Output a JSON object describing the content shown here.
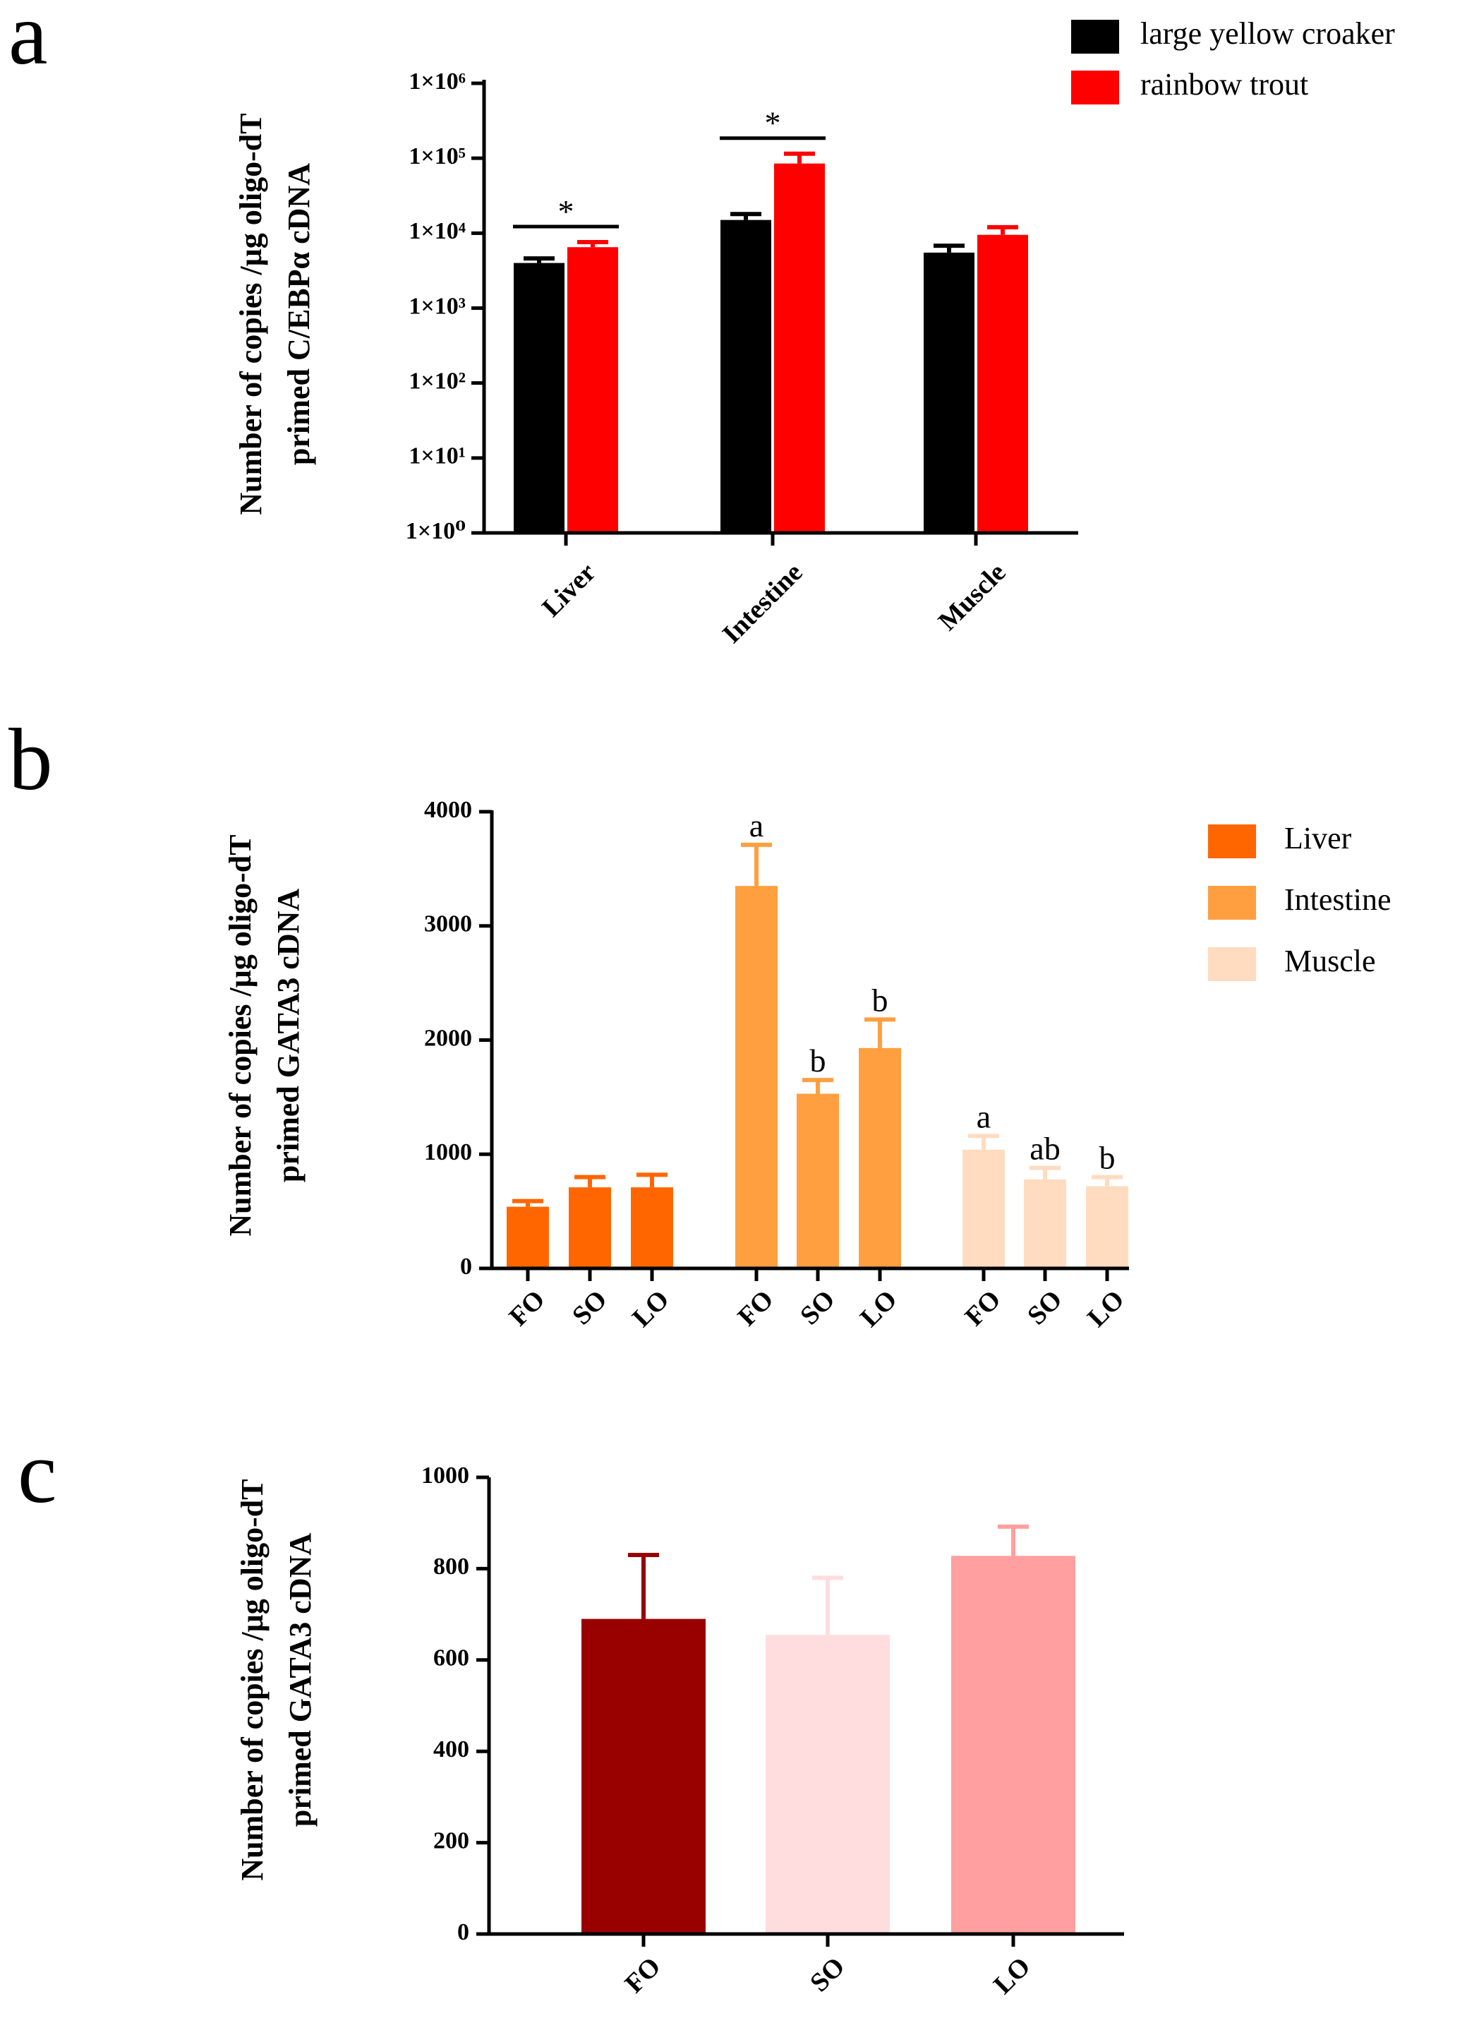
{
  "chart_data": [
    {
      "panel": "a",
      "type": "bar",
      "yscale": "log",
      "ylabel_lines": [
        "Number of copies /μg oligo-dT",
        "primed C/EBPα cDNA"
      ],
      "ytick_labels": [
        "1×10⁰",
        "1×10¹",
        "1×10²",
        "1×10³",
        "1×10⁴",
        "1×10⁵",
        "1×10⁶"
      ],
      "ylim": [
        1,
        1000000
      ],
      "categories": [
        "Liver",
        "Intestine",
        "Muscle"
      ],
      "series": [
        {
          "name": "large yellow croaker",
          "color": "#000000",
          "values": [
            4000,
            15000,
            5500
          ],
          "errors": [
            4600,
            18000,
            6800
          ]
        },
        {
          "name": "rainbow trout",
          "color": "#ff0000",
          "values": [
            6500,
            85000,
            9500
          ],
          "errors": [
            7600,
            115000,
            12000
          ]
        }
      ],
      "significance": [
        {
          "category": "Liver",
          "label": "*"
        },
        {
          "category": "Intestine",
          "label": "*"
        }
      ]
    },
    {
      "panel": "b",
      "type": "bar",
      "ylabel_lines": [
        "Number of copies /μg oligo-dT",
        "primed GATA3 cDNA"
      ],
      "ylim": [
        0,
        4000
      ],
      "yticks": [
        0,
        1000,
        2000,
        3000,
        4000
      ],
      "groups": [
        {
          "name": "Liver",
          "color": "#ff6600",
          "categories": [
            "FO",
            "SO",
            "LO"
          ],
          "values": [
            540,
            710,
            710
          ],
          "errors": [
            590,
            800,
            820
          ],
          "letters": [
            "",
            "",
            ""
          ]
        },
        {
          "name": "Intestine",
          "color": "#ff9f40",
          "categories": [
            "FO",
            "SO",
            "LO"
          ],
          "values": [
            3350,
            1530,
            1930
          ],
          "errors": [
            3710,
            1650,
            2180
          ],
          "letters": [
            "a",
            "b",
            "b"
          ]
        },
        {
          "name": "Muscle",
          "color": "#ffdcc0",
          "categories": [
            "FO",
            "SO",
            "LO"
          ],
          "values": [
            1040,
            780,
            720
          ],
          "errors": [
            1160,
            880,
            800
          ],
          "letters": [
            "a",
            "ab",
            "b"
          ]
        }
      ]
    },
    {
      "panel": "c",
      "type": "bar",
      "ylabel_lines": [
        "Number of copies /μg oligo-dT",
        "primed GATA3 cDNA"
      ],
      "ylim": [
        0,
        1000
      ],
      "yticks": [
        0,
        200,
        400,
        600,
        800,
        1000
      ],
      "categories": [
        "FO",
        "SO",
        "LO"
      ],
      "values": [
        690,
        655,
        828
      ],
      "errors": [
        830,
        780,
        892
      ],
      "colors": [
        "#990000",
        "#ffdddf",
        "#ff9fa0"
      ]
    }
  ]
}
